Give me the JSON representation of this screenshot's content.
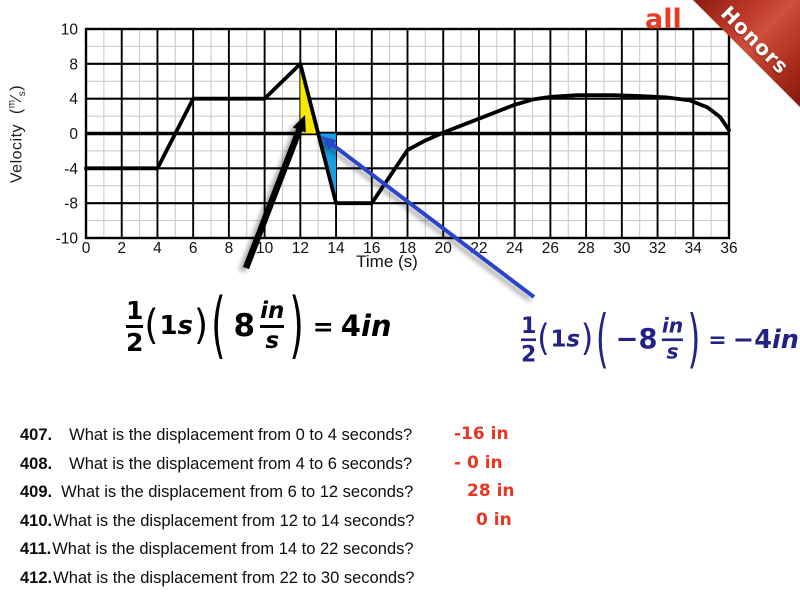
{
  "badge": {
    "label": "all",
    "color": "#e93a22"
  },
  "ribbon": {
    "label": "Honors",
    "text_color": "#ffffff",
    "color_dark": "#8a1d10",
    "color_light": "#cf4e3e"
  },
  "chart_data": {
    "type": "line",
    "xlabel": "Time (s)",
    "ylabel": "Velocity (m/s)",
    "ylabel_parts": {
      "name": "Velocity",
      "open": "(",
      "unit_num": "m",
      "slash": "⁄",
      "unit_den": "s",
      "close": ")"
    },
    "xlim": [
      0,
      36
    ],
    "ylim": [
      -10,
      10
    ],
    "x_ticks": [
      0,
      2,
      4,
      6,
      8,
      10,
      12,
      14,
      16,
      18,
      20,
      22,
      24,
      26,
      28,
      30,
      32,
      34,
      36
    ],
    "y_ticks": [
      10,
      8,
      4,
      0,
      -4,
      -8,
      -10
    ],
    "grid": "major-black, minor-gray at odd seconds and half-rows",
    "legend": "none",
    "series": [
      {
        "name": "velocity",
        "color": "#000000",
        "points": [
          [
            0,
            -4
          ],
          [
            4,
            -4
          ],
          [
            6,
            4
          ],
          [
            10,
            4
          ],
          [
            12,
            8
          ],
          [
            14,
            -8
          ],
          [
            16,
            -8
          ],
          [
            18,
            -1.9
          ],
          [
            19,
            -0.8
          ],
          [
            20,
            0.1
          ],
          [
            21,
            0.9
          ],
          [
            22,
            1.7
          ],
          [
            23,
            2.5
          ],
          [
            24,
            3.3
          ],
          [
            25,
            3.9
          ],
          [
            26,
            4.2
          ],
          [
            27.5,
            4.4
          ],
          [
            29.5,
            4.4
          ],
          [
            31,
            4.3
          ],
          [
            32.5,
            4.15
          ],
          [
            33.8,
            3.8
          ],
          [
            34.8,
            3.0
          ],
          [
            35.5,
            1.9
          ],
          [
            36,
            0.4
          ]
        ]
      }
    ],
    "annotations": {
      "yellow_triangle": {
        "color": "#f5e606",
        "vertices": [
          [
            12,
            8
          ],
          [
            12,
            0
          ],
          [
            13,
            0
          ]
        ],
        "meaning": "area = +4 in"
      },
      "blue_triangle": {
        "color": "#1b9de2",
        "vertices": [
          [
            13,
            0
          ],
          [
            14,
            0
          ],
          [
            14,
            -8
          ]
        ],
        "meaning": "area = -4 in"
      },
      "black_arrow": {
        "points_to": "yellow_triangle",
        "color": "#000000"
      },
      "blue_arrow": {
        "points_to": "blue_triangle",
        "color": "#2a46c8"
      }
    }
  },
  "formulas": {
    "black": {
      "color": "#000000",
      "frac_num": "1",
      "frac_den": "2",
      "term_num": "1",
      "term_unit": "s",
      "coeff": "8",
      "unit_num": "in",
      "unit_den": "s",
      "equals": "=",
      "result": "4",
      "result_unit": "in"
    },
    "blue": {
      "color": "#232287",
      "frac_num": "1",
      "frac_den": "2",
      "term_num": "1",
      "term_unit": "s",
      "coeff": "−8",
      "unit_num": "in",
      "unit_den": "s",
      "equals": "=",
      "result": "−4",
      "result_unit": "in"
    }
  },
  "questions": [
    {
      "number": "407.",
      "text": "What is the displacement from 0 to 4 seconds?",
      "answer": "-16 in"
    },
    {
      "number": "408.",
      "text": "What is the displacement from 4 to 6 seconds?",
      "answer": "- 0 in"
    },
    {
      "number": "409.",
      "text": "What is the displacement from 6 to 12 seconds?",
      "answer": "28 in"
    },
    {
      "number": "410.",
      "text": "What is the displacement from 12 to 14 seconds?",
      "answer": "0 in"
    },
    {
      "number": "411.",
      "text": "What is the displacement from 14 to 22 seconds?",
      "answer": ""
    },
    {
      "number": "412.",
      "text": "What is the displacement from 22 to 30 seconds?",
      "answer": ""
    }
  ],
  "answer_color": "#ea3522"
}
